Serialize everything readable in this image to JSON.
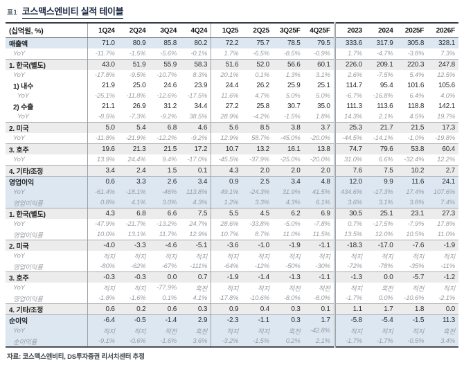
{
  "title": {
    "tag": "표1",
    "text": "코스맥스엔비티 실적 테이블"
  },
  "footer": "자료: 코스맥스엔비티, DS투자증권 리서치센터 추정",
  "colors": {
    "band_blue": "#dce7f1",
    "band_gray": "#ececec",
    "title_navy": "#1b2942",
    "sub_text_gray": "#999da3"
  },
  "table": {
    "unit_header": "(십억원, %)",
    "columns": [
      "1Q24",
      "2Q24",
      "3Q24",
      "4Q24",
      "1Q25",
      "2Q25",
      "3Q25F",
      "4Q25F",
      "2023",
      "2024",
      "2025F",
      "2026F"
    ],
    "rows": [
      {
        "label": "매출액",
        "bg": "blue",
        "kind": "main",
        "indent": 0,
        "sep": false,
        "values": [
          "71.0",
          "80.9",
          "85.8",
          "80.2",
          "72.2",
          "75.7",
          "78.5",
          "79.5",
          "333.6",
          "317.9",
          "305.8",
          "328.1"
        ]
      },
      {
        "label": "YoY",
        "bg": "white",
        "kind": "sub",
        "indent": 1,
        "sep": false,
        "values": [
          "-11.7%",
          "-1.5%",
          "-5.6%",
          "-0.1%",
          "1.7%",
          "-6.5%",
          "-8.5%",
          "-0.9%",
          "1.7%",
          "-4.7%",
          "-3.8%",
          "7.3%"
        ]
      },
      {
        "label": "1. 한국(별도)",
        "bg": "gray",
        "kind": "main",
        "indent": 0,
        "sep": true,
        "values": [
          "43.0",
          "51.9",
          "55.9",
          "58.3",
          "51.6",
          "52.0",
          "56.6",
          "60.1",
          "226.0",
          "209.1",
          "220.3",
          "247.8"
        ]
      },
      {
        "label": "YoY",
        "bg": "white",
        "kind": "sub",
        "indent": 1,
        "sep": false,
        "values": [
          "-17.8%",
          "-9.5%",
          "-10.7%",
          "8.3%",
          "20.1%",
          "0.1%",
          "1.3%",
          "3.1%",
          "2.6%",
          "-7.5%",
          "5.4%",
          "12.5%"
        ]
      },
      {
        "label": "1) 내수",
        "bg": "white",
        "kind": "main",
        "indent": 1,
        "sep": false,
        "values": [
          "21.9",
          "25.0",
          "24.6",
          "23.9",
          "24.4",
          "26.2",
          "25.9",
          "25.1",
          "114.7",
          "95.4",
          "101.6",
          "105.6"
        ]
      },
      {
        "label": "YoY",
        "bg": "white",
        "kind": "sub",
        "indent": 2,
        "sep": false,
        "values": [
          "-25.1%",
          "-11.8%",
          "-12.6%",
          "-17.5%",
          "11.6%",
          "4.7%",
          "5.0%",
          "5.0%",
          "-6.7%",
          "-16.8%",
          "6.4%",
          "4.0%"
        ]
      },
      {
        "label": "2) 수출",
        "bg": "white",
        "kind": "main",
        "indent": 1,
        "sep": false,
        "values": [
          "21.1",
          "26.9",
          "31.2",
          "34.4",
          "27.2",
          "25.8",
          "30.7",
          "35.0",
          "111.3",
          "113.6",
          "118.8",
          "142.1"
        ]
      },
      {
        "label": "YoY",
        "bg": "white",
        "kind": "sub",
        "indent": 2,
        "sep": false,
        "values": [
          "-8.5%",
          "-7.3%",
          "-9.2%",
          "38.5%",
          "28.9%",
          "-4.2%",
          "-1.5%",
          "1.8%",
          "14.3%",
          "2.1%",
          "4.5%",
          "19.7%"
        ]
      },
      {
        "label": "2. 미국",
        "bg": "gray",
        "kind": "main",
        "indent": 0,
        "sep": true,
        "values": [
          "5.0",
          "5.4",
          "6.8",
          "4.6",
          "5.6",
          "8.5",
          "3.8",
          "3.7",
          "25.3",
          "21.7",
          "21.5",
          "17.3"
        ]
      },
      {
        "label": "YoY",
        "bg": "white",
        "kind": "sub",
        "indent": 1,
        "sep": false,
        "values": [
          "-11.8%",
          "-21.9%",
          "-12.2%",
          "-9.2%",
          "12.9%",
          "58.7%",
          "-45.0%",
          "-20.0%",
          "-44.5%",
          "-14.1%",
          "-1.0%",
          "-19.8%"
        ]
      },
      {
        "label": "3. 호주",
        "bg": "gray",
        "kind": "main",
        "indent": 0,
        "sep": true,
        "values": [
          "19.6",
          "21.3",
          "21.5",
          "17.2",
          "10.7",
          "13.2",
          "16.1",
          "13.8",
          "74.7",
          "79.6",
          "53.8",
          "60.4"
        ]
      },
      {
        "label": "YoY",
        "bg": "white",
        "kind": "sub",
        "indent": 1,
        "sep": false,
        "values": [
          "13.9%",
          "24.4%",
          "9.4%",
          "-17.0%",
          "-45.5%",
          "-37.9%",
          "-25.0%",
          "-20.0%",
          "31.0%",
          "6.6%",
          "-32.4%",
          "12.2%"
        ]
      },
      {
        "label": "4. 기타/조정",
        "bg": "gray",
        "kind": "main",
        "indent": 0,
        "sep": true,
        "values": [
          "3.4",
          "2.4",
          "1.5",
          "0.1",
          "4.3",
          "2.0",
          "2.0",
          "2.0",
          "7.6",
          "7.5",
          "10.2",
          "2.7"
        ]
      },
      {
        "label": "영업이익",
        "bg": "blue",
        "kind": "main",
        "indent": 0,
        "sep": true,
        "values": [
          "0.6",
          "3.3",
          "2.6",
          "3.4",
          "0.9",
          "2.5",
          "3.4",
          "4.8",
          "12.0",
          "9.9",
          "11.6",
          "24.1"
        ]
      },
      {
        "label": "YoY",
        "bg": "blue",
        "kind": "sub",
        "indent": 1,
        "sep": false,
        "values": [
          "-61.4%",
          "-18.1%",
          "-46%",
          "113.8%",
          "49.1%",
          "-24.3%",
          "31.9%",
          "41.5%",
          "434.6%",
          "-17.3%",
          "17.4%",
          "107.6%"
        ]
      },
      {
        "label": "영업이익률",
        "bg": "blue",
        "kind": "sub",
        "indent": 1,
        "sep": false,
        "values": [
          "0.8%",
          "4.1%",
          "3.0%",
          "4.3%",
          "1.2%",
          "3.3%",
          "4.3%",
          "6.1%",
          "3.6%",
          "3.1%",
          "3.8%",
          "7.4%"
        ]
      },
      {
        "label": "1. 한국(별도)",
        "bg": "gray",
        "kind": "main",
        "indent": 0,
        "sep": true,
        "values": [
          "4.3",
          "6.8",
          "6.6",
          "7.5",
          "5.5",
          "4.5",
          "6.2",
          "6.9",
          "30.5",
          "25.1",
          "23.1",
          "27.3"
        ]
      },
      {
        "label": "YoY",
        "bg": "white",
        "kind": "sub",
        "indent": 1,
        "sep": false,
        "values": [
          "-47.9%",
          "-21.7%",
          "-13.2%",
          "24.7%",
          "28.6%",
          "-33.8%",
          "-5.0%",
          "-7.8%",
          "0.7%",
          "-17.5%",
          "-7.9%",
          "17.8%"
        ]
      },
      {
        "label": "영업이익률",
        "bg": "white",
        "kind": "sub",
        "indent": 1,
        "sep": false,
        "values": [
          "10.0%",
          "13.1%",
          "11.7%",
          "12.9%",
          "10.7%",
          "8.7%",
          "11.0%",
          "11.5%",
          "13.5%",
          "12.0%",
          "10.5%",
          "11.0%"
        ]
      },
      {
        "label": "2. 미국",
        "bg": "gray",
        "kind": "main",
        "indent": 0,
        "sep": true,
        "values": [
          "-4.0",
          "-3.3",
          "-4.6",
          "-5.1",
          "-3.6",
          "-1.0",
          "-1.9",
          "-1.1",
          "-18.3",
          "-17.0",
          "-7.6",
          "-1.9"
        ]
      },
      {
        "label": "YoY",
        "bg": "white",
        "kind": "sub",
        "indent": 1,
        "sep": false,
        "values": [
          "적지",
          "적지",
          "적지",
          "적지",
          "적지",
          "적지",
          "적지",
          "적지",
          "적지",
          "적지",
          "적지",
          "적지"
        ]
      },
      {
        "label": "영업이익률",
        "bg": "white",
        "kind": "sub",
        "indent": 1,
        "sep": false,
        "values": [
          "-80%",
          "-62%",
          "-67%",
          "-111%",
          "-64%",
          "-12%",
          "-50%",
          "-30%",
          "-72%",
          "-78%",
          "-35%",
          "-11%"
        ]
      },
      {
        "label": "3. 호주",
        "bg": "gray",
        "kind": "main",
        "indent": 0,
        "sep": true,
        "values": [
          "-0.3",
          "-0.3",
          "0.0",
          "0.7",
          "-1.9",
          "-1.4",
          "-1.3",
          "-1.1",
          "-1.3",
          "0.0",
          "-5.7",
          "-1.2"
        ]
      },
      {
        "label": "YoY",
        "bg": "white",
        "kind": "sub",
        "indent": 1,
        "sep": false,
        "values": [
          "적지",
          "적지",
          "-77.9%",
          "흑전",
          "적지",
          "적지",
          "적전",
          "적전",
          "적지",
          "흑전",
          "적전",
          "적지"
        ]
      },
      {
        "label": "영업이익률",
        "bg": "white",
        "kind": "sub",
        "indent": 1,
        "sep": false,
        "values": [
          "-1.8%",
          "-1.6%",
          "0.1%",
          "4.1%",
          "-17.8%",
          "-10.6%",
          "-8.0%",
          "-8.0%",
          "-1.7%",
          "0.0%",
          "-10.6%",
          "-2.1%"
        ]
      },
      {
        "label": "4. 기타/조정",
        "bg": "gray",
        "kind": "main",
        "indent": 0,
        "sep": true,
        "values": [
          "0.6",
          "0.2",
          "0.6",
          "0.3",
          "0.9",
          "0.4",
          "0.3",
          "0.1",
          "1.1",
          "1.7",
          "1.8",
          "0.0"
        ]
      },
      {
        "label": "순이익",
        "bg": "blue",
        "kind": "main",
        "indent": 0,
        "sep": true,
        "values": [
          "-6.4",
          "-0.5",
          "-1.4",
          "2.9",
          "-2.3",
          "-1.1",
          "0.3",
          "1.7",
          "-5.8",
          "-5.4",
          "-1.5",
          "11.3"
        ]
      },
      {
        "label": "YoY",
        "bg": "blue",
        "kind": "sub",
        "indent": 1,
        "sep": false,
        "values": [
          "적지",
          "적지",
          "적전",
          "흑전",
          "적지",
          "적지",
          "흑전",
          "-42.8%",
          "적지",
          "적지",
          "적지",
          "흑전"
        ]
      },
      {
        "label": "순이익률",
        "bg": "blue",
        "kind": "sub",
        "indent": 1,
        "sep": false,
        "values": [
          "-9.1%",
          "-0.6%",
          "-1.6%",
          "3.6%",
          "-3.2%",
          "-1.5%",
          "0.2%",
          "2.1%",
          "-1.7%",
          "-1.7%",
          "-0.5%",
          "3.4%"
        ]
      }
    ]
  }
}
